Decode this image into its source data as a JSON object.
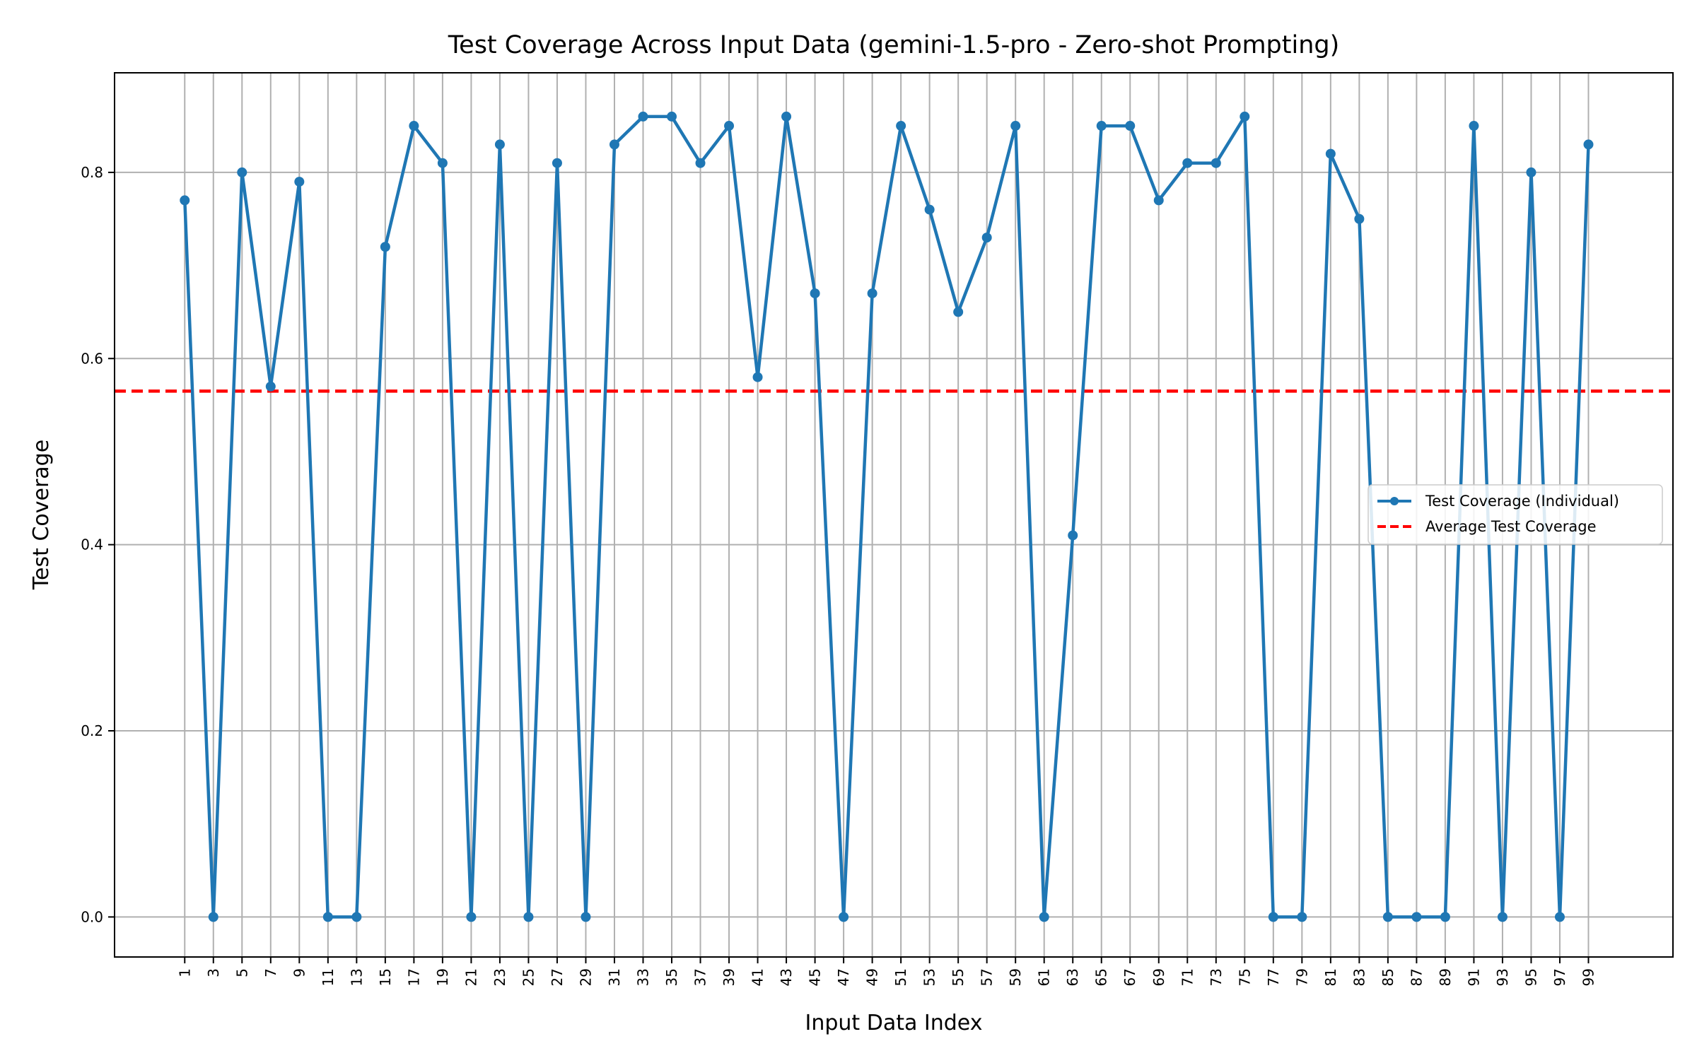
{
  "chart_data": {
    "type": "line",
    "title": "Test Coverage Across Input Data (gemini-1.5-pro - Zero-shot Prompting)",
    "xlabel": "Input Data Index",
    "ylabel": "Test Coverage",
    "x": [
      1,
      3,
      5,
      7,
      9,
      11,
      13,
      15,
      17,
      19,
      21,
      23,
      25,
      27,
      29,
      31,
      33,
      35,
      37,
      39,
      41,
      43,
      45,
      47,
      49,
      51,
      53,
      55,
      57,
      59,
      61,
      63,
      65,
      67,
      69,
      71,
      73,
      75,
      77,
      79,
      81,
      83,
      85,
      87,
      89,
      91,
      93,
      95,
      97,
      99
    ],
    "x_ticks": [
      "1",
      "3",
      "5",
      "7",
      "9",
      "11",
      "13",
      "15",
      "17",
      "19",
      "21",
      "23",
      "25",
      "27",
      "29",
      "31",
      "33",
      "35",
      "37",
      "39",
      "41",
      "43",
      "45",
      "47",
      "49",
      "51",
      "53",
      "55",
      "57",
      "59",
      "61",
      "63",
      "65",
      "67",
      "69",
      "71",
      "73",
      "75",
      "77",
      "79",
      "81",
      "83",
      "85",
      "87",
      "89",
      "91",
      "93",
      "95",
      "97",
      "99"
    ],
    "y_ticks": [
      "0.0",
      "0.2",
      "0.4",
      "0.6",
      "0.8"
    ],
    "y_tick_values": [
      0.0,
      0.2,
      0.4,
      0.6,
      0.8
    ],
    "xlim": [
      -3.9,
      104.9
    ],
    "ylim": [
      -0.043,
      0.907
    ],
    "series": [
      {
        "name": "Test Coverage (Individual)",
        "color": "#1f77b4",
        "values": [
          0.77,
          0.0,
          0.8,
          0.57,
          0.79,
          0.0,
          0.0,
          0.72,
          0.85,
          0.81,
          0.0,
          0.83,
          0.0,
          0.81,
          0.0,
          0.83,
          0.86,
          0.86,
          0.81,
          0.85,
          0.58,
          0.86,
          0.67,
          0.0,
          0.67,
          0.85,
          0.76,
          0.65,
          0.73,
          0.85,
          0.0,
          0.41,
          0.85,
          0.85,
          0.77,
          0.81,
          0.81,
          0.86,
          0.0,
          0.0,
          0.82,
          0.75,
          0.0,
          0.0,
          0.0,
          0.85,
          0.0,
          0.8,
          0.0,
          0.83
        ]
      }
    ],
    "average": {
      "name": "Average Test Coverage",
      "value": 0.565,
      "color": "#ff0000"
    },
    "grid": true,
    "legend_position": "center-right"
  }
}
